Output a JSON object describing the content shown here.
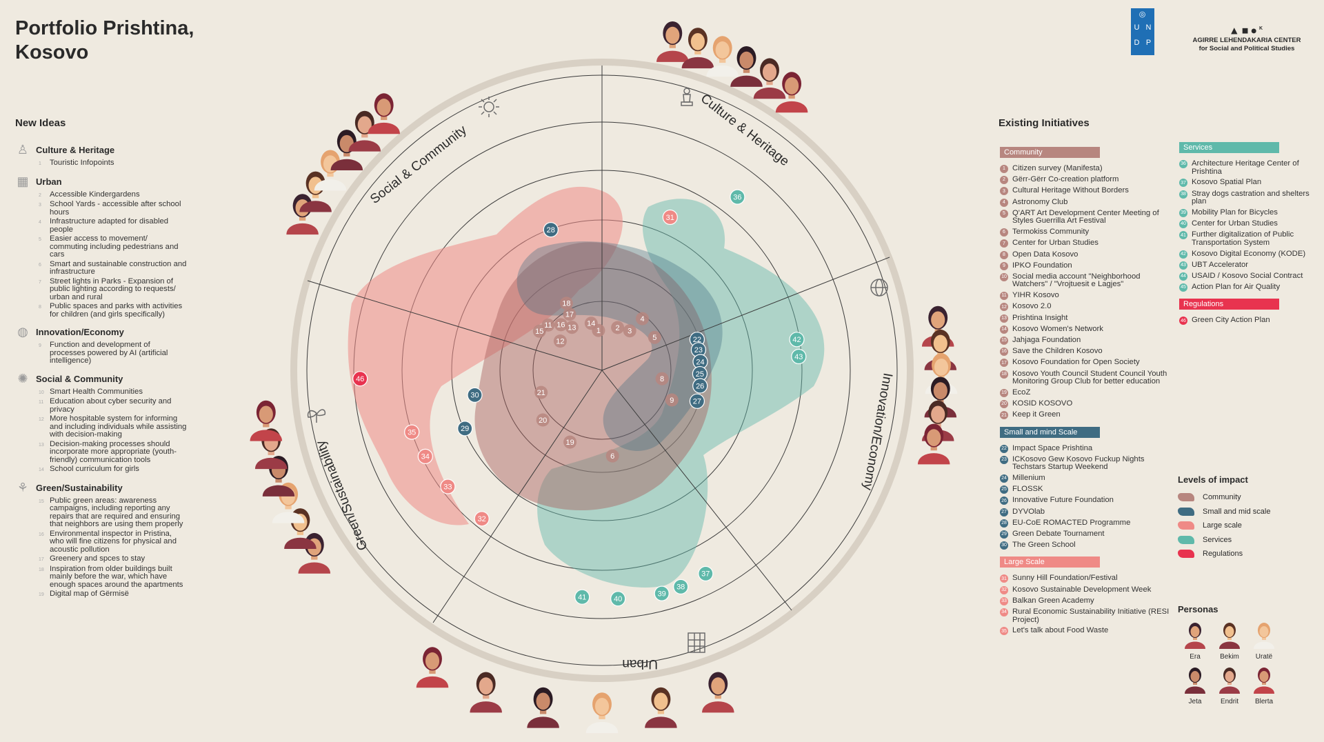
{
  "title": "Portfolio Prishtina, Kosovo",
  "new_ideas": {
    "heading": "New Ideas",
    "categories": [
      {
        "name": "Culture & Heritage",
        "icon": "statue-icon",
        "items": [
          {
            "n": "1",
            "text": "Touristic Infopoints"
          }
        ]
      },
      {
        "name": "Urban",
        "icon": "building-icon",
        "items": [
          {
            "n": "2",
            "text": "Accessible Kindergardens"
          },
          {
            "n": "3",
            "text": "School Yards - accessible after school hours"
          },
          {
            "n": "4",
            "text": "Infrastructure adapted for disabled people"
          },
          {
            "n": "5",
            "text": "Easier access to movement/ commuting including pedestrians and cars"
          },
          {
            "n": "6",
            "text": "Smart and sustainable construction and infrastructure"
          },
          {
            "n": "7",
            "text": "Street lights in Parks - Expansion of public lighting according to requests/ urban and rural"
          },
          {
            "n": "8",
            "text": "Public spaces and parks with activities for children (and girls specifically)"
          }
        ]
      },
      {
        "name": "Innovation/Economy",
        "icon": "globe-icon",
        "items": [
          {
            "n": "9",
            "text": "Function and development of processes powered by AI (artificial intelligence)"
          }
        ]
      },
      {
        "name": "Social & Community",
        "icon": "sun-icon",
        "items": [
          {
            "n": "10",
            "text": "Smart Health Communities"
          },
          {
            "n": "11",
            "text": "Education about cyber security and privacy"
          },
          {
            "n": "12",
            "text": "More hospitable system for informing and including individuals while assisting with decision-making"
          },
          {
            "n": "13",
            "text": "Decision-making processes should incorporate more appropriate (youth-friendly) communication tools"
          },
          {
            "n": "14",
            "text": "School curriculum for girls"
          }
        ]
      },
      {
        "name": "Green/Sustainability",
        "icon": "sprout-icon",
        "items": [
          {
            "n": "15",
            "text": "Public green areas: awareness campaigns, including reporting any repairs that are required and ensuring that neighbors are using them properly"
          },
          {
            "n": "16",
            "text": "Environmental inspector in Pristina, who will fine citizens for physical and acoustic pollution"
          },
          {
            "n": "17",
            "text": "Greenery and spces to stay"
          },
          {
            "n": "18",
            "text": "Inspiration from older buildings built mainly before the war, which have enough spaces around the apartments"
          },
          {
            "n": "19",
            "text": "Digital map of Gërmisë"
          }
        ]
      }
    ]
  },
  "existing": {
    "heading": "Existing Initiatives",
    "groups": [
      {
        "label": "Community",
        "color": "#b7867f",
        "items": [
          {
            "n": "1",
            "text": "Citizen survey (Manifesta)"
          },
          {
            "n": "2",
            "text": "Gërr-Gërr Co-creation platform"
          },
          {
            "n": "3",
            "text": "Cultural Heritage Without Borders"
          },
          {
            "n": "4",
            "text": "Astronomy Club"
          },
          {
            "n": "5",
            "text": "Q'ART Art Development Center Meeting of Styles Guerrilla Art Festival"
          },
          {
            "n": "6",
            "text": "Termokiss Community"
          },
          {
            "n": "7",
            "text": "Center for Urban Studies"
          },
          {
            "n": "8",
            "text": "Open Data Kosovo"
          },
          {
            "n": "9",
            "text": "IPKO Foundation"
          },
          {
            "n": "10",
            "text": "Social media account \"Neighborhood Watchers\" / \"Vrojtuesit e Lagjes\""
          },
          {
            "n": "11",
            "text": "YIHR Kosovo"
          },
          {
            "n": "12",
            "text": "Kosovo 2.0"
          },
          {
            "n": "13",
            "text": "Prishtina Insight"
          },
          {
            "n": "14",
            "text": "Kosovo Women's Network"
          },
          {
            "n": "15",
            "text": "Jahjaga Foundation"
          },
          {
            "n": "16",
            "text": "Save the Children Kosovo"
          },
          {
            "n": "17",
            "text": "Kosovo Foundation for Open Society"
          },
          {
            "n": "18",
            "text": "Kosovo Youth Council Student Council Youth Monitoring Group Club for better education"
          },
          {
            "n": "19",
            "text": "EcoZ"
          },
          {
            "n": "20",
            "text": "KOSID KOSOVO"
          },
          {
            "n": "21",
            "text": "Keep it Green"
          }
        ]
      },
      {
        "label": "Small and mind Scale",
        "color": "#3f6c82",
        "items": [
          {
            "n": "22",
            "text": "Impact Space Prishtina"
          },
          {
            "n": "23",
            "text": "ICKosovo Gew Kosovo Fuckup Nights Techstars Startup Weekend"
          },
          {
            "n": "24",
            "text": "Millenium"
          },
          {
            "n": "25",
            "text": "FLOSSK"
          },
          {
            "n": "26",
            "text": "Innovative Future Foundation"
          },
          {
            "n": "27",
            "text": "DYVOlab"
          },
          {
            "n": "28",
            "text": "EU-CoE ROMACTED Programme"
          },
          {
            "n": "29",
            "text": "Green Debate Tournament"
          },
          {
            "n": "30",
            "text": "The Green School"
          }
        ]
      },
      {
        "label": "Large Scale",
        "color": "#ef8a86",
        "items": [
          {
            "n": "31",
            "text": "Sunny Hill Foundation/Festival"
          },
          {
            "n": "32",
            "text": "Kosovo Sustainable Development Week"
          },
          {
            "n": "33",
            "text": "Balkan Green Academy"
          },
          {
            "n": "34",
            "text": "Rural Economic Sustainability Initiative (RESI Project)"
          },
          {
            "n": "35",
            "text": "Let's talk about Food Waste"
          }
        ]
      },
      {
        "label": "Services",
        "color": "#5fb9aa",
        "items": [
          {
            "n": "36",
            "text": "Architecture Heritage Center of Prishtina"
          },
          {
            "n": "37",
            "text": "Kosovo Spatial Plan"
          },
          {
            "n": "38",
            "text": "Stray dogs castration and shelters plan"
          },
          {
            "n": "39",
            "text": "Mobility Plan for Bicycles"
          },
          {
            "n": "40",
            "text": "Center for Urban Studies"
          },
          {
            "n": "41",
            "text": "Further digitalization of Public Transportation System"
          },
          {
            "n": "42",
            "text": "Kosovo Digital Economy (KODE)"
          },
          {
            "n": "43",
            "text": "UBT Accelerator"
          },
          {
            "n": "44",
            "text": "USAID / Kosovo Social Contract"
          },
          {
            "n": "45",
            "text": "Action Plan for Air Quality"
          }
        ]
      },
      {
        "label": "Regulations",
        "color": "#e8334f",
        "items": [
          {
            "n": "46",
            "text": "Green City Action Plan"
          }
        ]
      }
    ]
  },
  "logos": {
    "undp_letters": [
      "U",
      "N",
      "D",
      "P"
    ],
    "agirre_mark": "▲■●",
    "agirre_k": "K",
    "agirre_line1": "AGIRRE LEHENDAKARIA CENTER",
    "agirre_line2": "for Social and Political Studies"
  },
  "levels": {
    "heading": "Levels of impact",
    "items": [
      {
        "label": "Community",
        "color": "#b7867f"
      },
      {
        "label": "Small and mid scale",
        "color": "#3f6c82"
      },
      {
        "label": "Large scale",
        "color": "#ef8a86"
      },
      {
        "label": "Services",
        "color": "#5fb9aa"
      },
      {
        "label": "Regulations",
        "color": "#e8334f"
      }
    ]
  },
  "personas": {
    "heading": "Personas",
    "items": [
      {
        "name": "Era",
        "hair": "#3a2230",
        "skin": "#e0a47b",
        "shirt": "#b5454b"
      },
      {
        "name": "Bekim",
        "hair": "#5a3224",
        "skin": "#f1c08e",
        "shirt": "#8a3541"
      },
      {
        "name": "Uratë",
        "hair": "#e5a36f",
        "skin": "#f3c69b",
        "shirt": "#f2f0ea"
      },
      {
        "name": "Jeta",
        "hair": "#2b1b24",
        "skin": "#c98a6a",
        "shirt": "#7a2f3b"
      },
      {
        "name": "Endrit",
        "hair": "#4a2a24",
        "skin": "#e3a88c",
        "shirt": "#9b3b46"
      },
      {
        "name": "Blerta",
        "hair": "#7b2434",
        "skin": "#d89a76",
        "shirt": "#c2444a"
      }
    ]
  },
  "diagram": {
    "sections": [
      {
        "label": "Social & Community",
        "icon": "sun-icon"
      },
      {
        "label": "Culture & Heritage",
        "icon": "statue-icon"
      },
      {
        "label": "Innovation/Economy",
        "icon": "globe-icon"
      },
      {
        "label": "Urban",
        "icon": "building-icon"
      },
      {
        "label": "Green/Sustainability",
        "icon": "sprout-icon"
      }
    ],
    "markers": [
      {
        "n": "1",
        "level": "Community"
      },
      {
        "n": "2",
        "level": "Community"
      },
      {
        "n": "3",
        "level": "Community"
      },
      {
        "n": "4",
        "level": "Community"
      },
      {
        "n": "5",
        "level": "Community"
      },
      {
        "n": "6",
        "level": "Community"
      },
      {
        "n": "8",
        "level": "Community"
      },
      {
        "n": "9",
        "level": "Community"
      },
      {
        "n": "11",
        "level": "Community"
      },
      {
        "n": "12",
        "level": "Community"
      },
      {
        "n": "13",
        "level": "Community"
      },
      {
        "n": "14",
        "level": "Community"
      },
      {
        "n": "15",
        "level": "Community"
      },
      {
        "n": "16",
        "level": "Community"
      },
      {
        "n": "17",
        "level": "Community"
      },
      {
        "n": "18",
        "level": "Community"
      },
      {
        "n": "19",
        "level": "Community"
      },
      {
        "n": "20",
        "level": "Community"
      },
      {
        "n": "21",
        "level": "Community"
      },
      {
        "n": "22",
        "level": "Small and mid scale"
      },
      {
        "n": "23",
        "level": "Small and mid scale"
      },
      {
        "n": "24",
        "level": "Small and mid scale"
      },
      {
        "n": "25",
        "level": "Small and mid scale"
      },
      {
        "n": "26",
        "level": "Small and mid scale"
      },
      {
        "n": "27",
        "level": "Small and mid scale"
      },
      {
        "n": "28",
        "level": "Small and mid scale"
      },
      {
        "n": "29",
        "level": "Small and mid scale"
      },
      {
        "n": "30",
        "level": "Small and mid scale"
      },
      {
        "n": "31",
        "level": "Large scale"
      },
      {
        "n": "32",
        "level": "Large scale"
      },
      {
        "n": "33",
        "level": "Large scale"
      },
      {
        "n": "34",
        "level": "Large scale"
      },
      {
        "n": "35",
        "level": "Large scale"
      },
      {
        "n": "36",
        "level": "Services"
      },
      {
        "n": "37",
        "level": "Services"
      },
      {
        "n": "38",
        "level": "Services"
      },
      {
        "n": "39",
        "level": "Services"
      },
      {
        "n": "40",
        "level": "Services"
      },
      {
        "n": "41",
        "level": "Services"
      },
      {
        "n": "42",
        "level": "Services"
      },
      {
        "n": "43",
        "level": "Services"
      },
      {
        "n": "46",
        "level": "Regulations"
      }
    ]
  }
}
